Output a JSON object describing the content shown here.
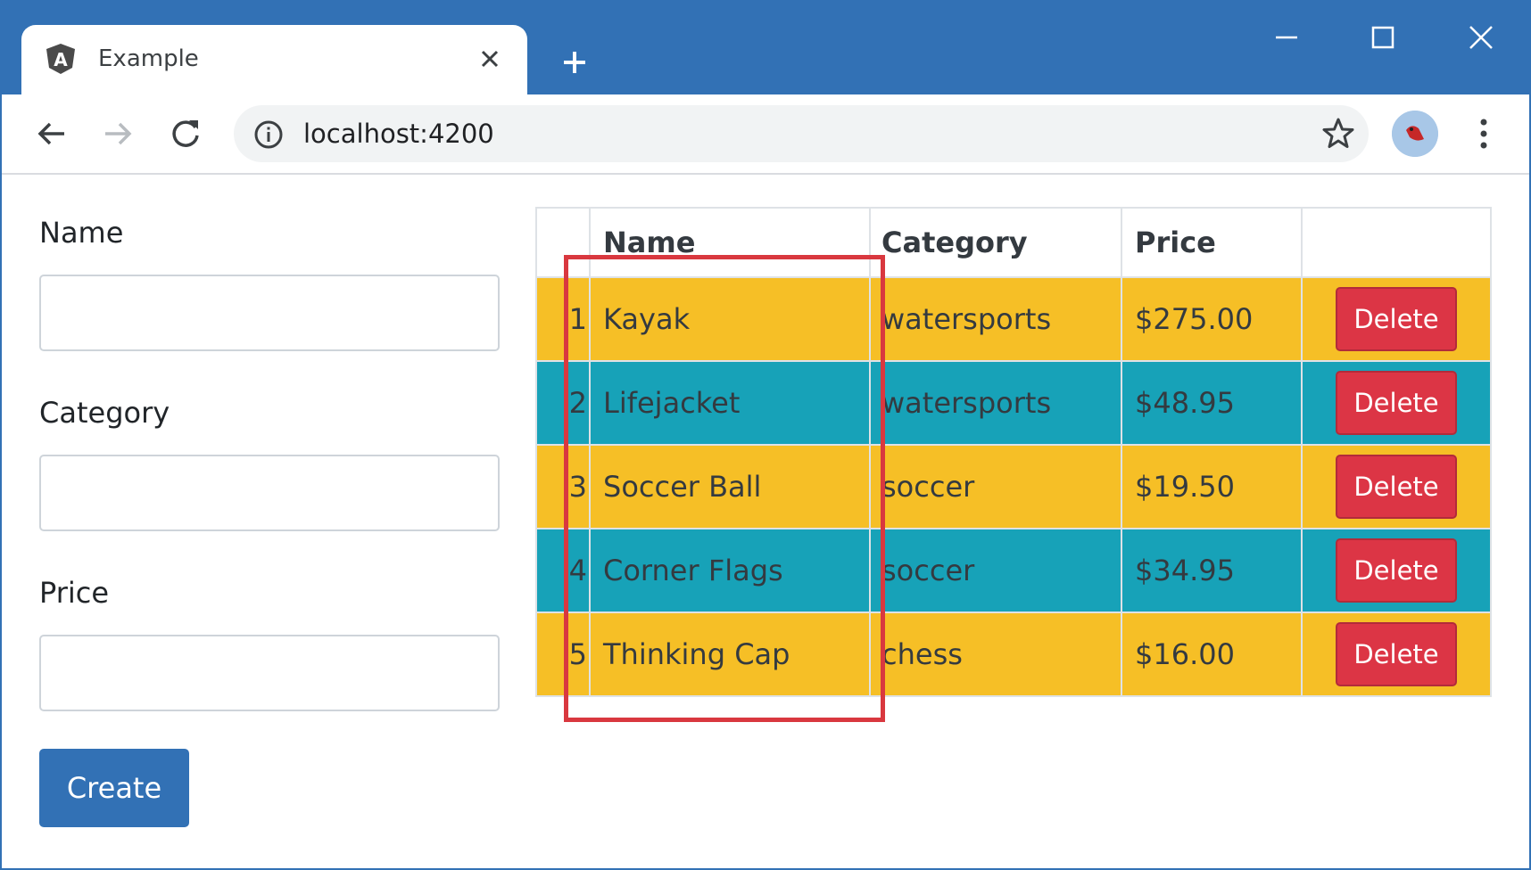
{
  "browser": {
    "tab": {
      "title": "Example",
      "favicon": "angular-icon"
    },
    "address_bar": {
      "url": "localhost:4200"
    },
    "colors": {
      "frame": "#3271b5"
    }
  },
  "form": {
    "fields": [
      {
        "label": "Name",
        "value": ""
      },
      {
        "label": "Category",
        "value": ""
      },
      {
        "label": "Price",
        "value": ""
      }
    ],
    "create_label": "Create"
  },
  "table": {
    "headers": [
      "",
      "Name",
      "Category",
      "Price",
      ""
    ],
    "rows": [
      {
        "id": "1",
        "name": "Kayak",
        "category": "watersports",
        "price": "$275.00",
        "action": "Delete",
        "style": "warning"
      },
      {
        "id": "2",
        "name": "Lifejacket",
        "category": "watersports",
        "price": "$48.95",
        "action": "Delete",
        "style": "info"
      },
      {
        "id": "3",
        "name": "Soccer Ball",
        "category": "soccer",
        "price": "$19.50",
        "action": "Delete",
        "style": "warning"
      },
      {
        "id": "4",
        "name": "Corner Flags",
        "category": "soccer",
        "price": "$34.95",
        "action": "Delete",
        "style": "info"
      },
      {
        "id": "5",
        "name": "Thinking Cap",
        "category": "chess",
        "price": "$16.00",
        "action": "Delete",
        "style": "warning"
      }
    ],
    "colors": {
      "warning": "#f6bf26",
      "info": "#17a2b8",
      "delete": "#dc3545",
      "highlight": "#d9383f"
    }
  }
}
